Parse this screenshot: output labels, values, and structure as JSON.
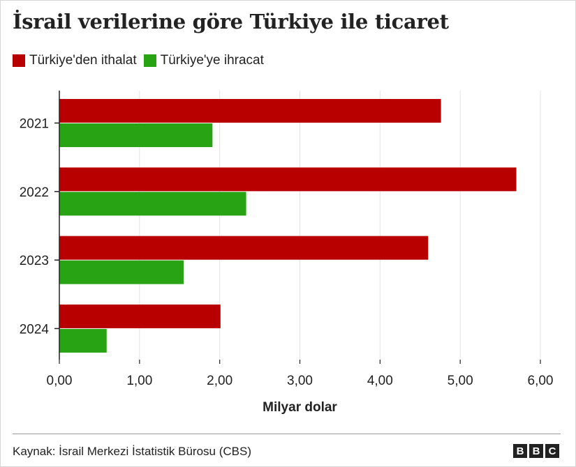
{
  "title": "İsrail verilerine göre Türkiye ile ticaret",
  "legend": [
    {
      "label": "Türkiye'den ithalat",
      "color": "#b80000"
    },
    {
      "label": "Türkiye'ye ihracat",
      "color": "#28a313"
    }
  ],
  "source": "Kaynak: İsrail Merkezi İstatistik Bürosu (CBS)",
  "logo": [
    "B",
    "B",
    "C"
  ],
  "chart_data": {
    "type": "bar",
    "orientation": "horizontal",
    "categories": [
      "2021",
      "2022",
      "2023",
      "2024"
    ],
    "series": [
      {
        "name": "Türkiye'den ithalat",
        "color": "#b80000",
        "values": [
          4.76,
          5.7,
          4.6,
          2.01
        ]
      },
      {
        "name": "Türkiye'ye ihracat",
        "color": "#28a313",
        "values": [
          1.91,
          2.33,
          1.55,
          0.59
        ]
      }
    ],
    "xlabel": "Milyar dolar",
    "xlim": [
      0,
      6
    ],
    "xticks": [
      "0,00",
      "1,00",
      "2,00",
      "3,00",
      "4,00",
      "5,00",
      "6,00"
    ],
    "grid": true
  }
}
